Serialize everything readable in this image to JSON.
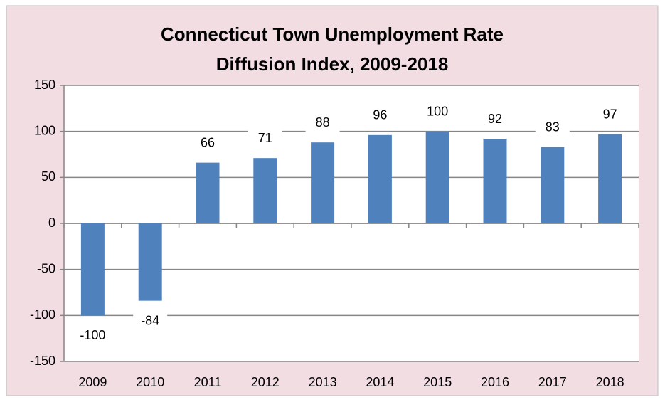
{
  "chart_data": {
    "type": "bar",
    "title": [
      "Connecticut Town Unemployment Rate",
      "Diffusion Index, 2009-2018"
    ],
    "categories": [
      "2009",
      "2010",
      "2011",
      "2012",
      "2013",
      "2014",
      "2015",
      "2016",
      "2017",
      "2018"
    ],
    "values": [
      -100,
      -84,
      66,
      71,
      88,
      96,
      100,
      92,
      83,
      97
    ],
    "color": "#4f81bd",
    "ylim": [
      -150,
      150
    ],
    "yticks": [
      -150,
      -100,
      -50,
      0,
      50,
      100,
      150
    ],
    "grid": true
  }
}
